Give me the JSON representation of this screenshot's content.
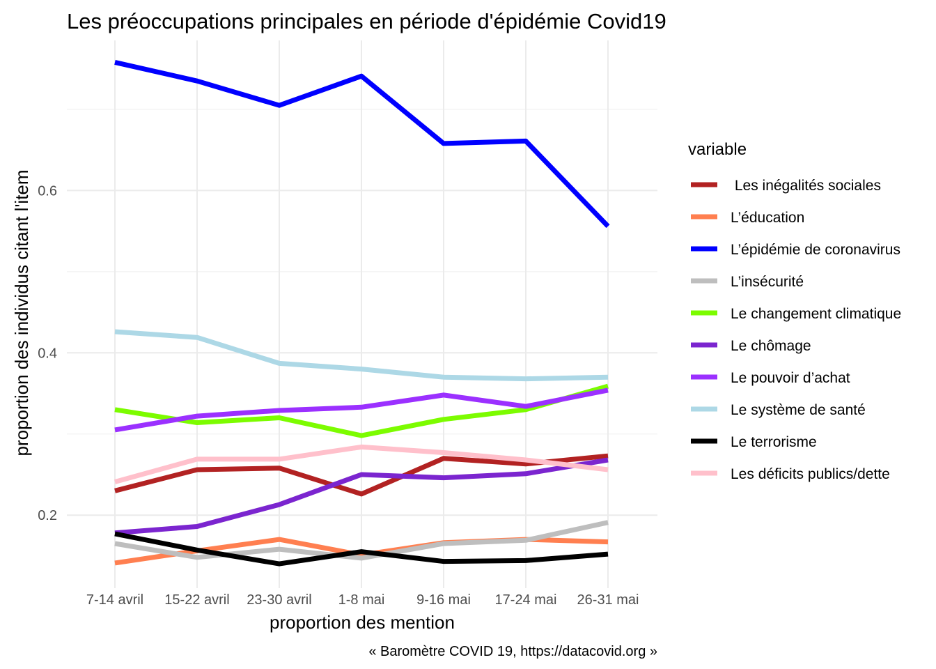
{
  "chart_data": {
    "type": "line",
    "title": "Les préoccupations principales en période d'épidémie Covid19",
    "xlabel": "proportion des mention",
    "ylabel": "proportion des individus citant l'item",
    "caption": "« Baromètre COVID 19, https://datacovid.org »",
    "legend_title": "variable",
    "legend_position": "right",
    "grid": true,
    "ylim": [
      0.11,
      0.785
    ],
    "yticks": [
      0.2,
      0.4,
      0.6
    ],
    "ytick_labels": [
      "0.2",
      "0.4",
      "0.6"
    ],
    "categories": [
      "7-14 avril",
      "15-22 avril",
      "23-30 avril",
      "1-8 mai",
      "9-16 mai",
      "17-24 mai",
      "26-31 mai"
    ],
    "series": [
      {
        "name": " Les inégalités sociales",
        "color": "#b22222",
        "values": [
          0.23,
          0.256,
          0.258,
          0.226,
          0.27,
          0.263,
          0.273
        ]
      },
      {
        "name": "L’éducation",
        "color": "#ff7f50",
        "values": [
          0.141,
          0.156,
          0.17,
          0.151,
          0.166,
          0.17,
          0.167
        ]
      },
      {
        "name": "L’épidémie de coronavirus",
        "color": "#0000ff",
        "values": [
          0.758,
          0.735,
          0.705,
          0.741,
          0.658,
          0.661,
          0.556
        ]
      },
      {
        "name": "L’insécurité",
        "color": "#bebebe",
        "values": [
          0.165,
          0.148,
          0.158,
          0.147,
          0.165,
          0.169,
          0.191
        ]
      },
      {
        "name": "Le changement climatique",
        "color": "#7cfc00",
        "values": [
          0.33,
          0.314,
          0.32,
          0.298,
          0.318,
          0.33,
          0.359
        ]
      },
      {
        "name": "Le chômage",
        "color": "#7b25cf",
        "values": [
          0.178,
          0.186,
          0.213,
          0.25,
          0.246,
          0.251,
          0.268
        ]
      },
      {
        "name": "Le pouvoir d’achat",
        "color": "#9b30ff",
        "values": [
          0.305,
          0.322,
          0.329,
          0.333,
          0.348,
          0.334,
          0.354
        ]
      },
      {
        "name": "Le système de santé",
        "color": "#add8e6",
        "values": [
          0.426,
          0.419,
          0.387,
          0.38,
          0.37,
          0.368,
          0.37
        ]
      },
      {
        "name": "Le terrorisme",
        "color": "#000000",
        "values": [
          0.177,
          0.157,
          0.14,
          0.155,
          0.143,
          0.144,
          0.152
        ]
      },
      {
        "name": "Les déficits publics/dette",
        "color": "#ffc0cb",
        "values": [
          0.241,
          0.269,
          0.269,
          0.284,
          0.277,
          0.268,
          0.256
        ]
      }
    ]
  }
}
